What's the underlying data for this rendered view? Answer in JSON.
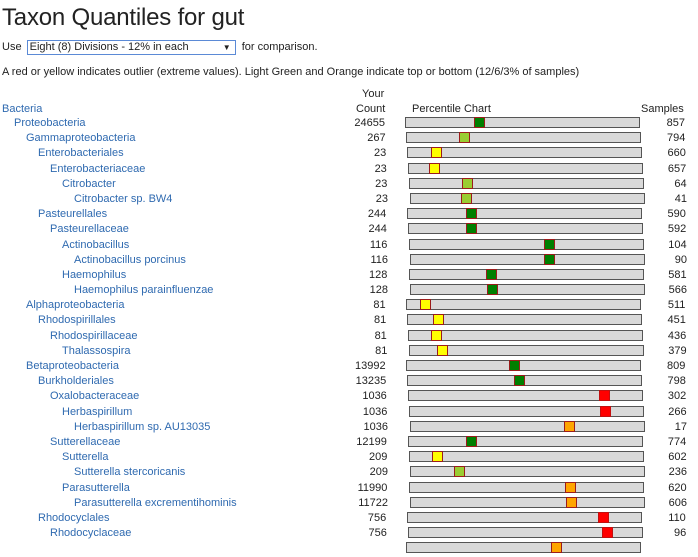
{
  "title": "Taxon Quantiles for gut",
  "comparison": {
    "prefix": "Use",
    "selected": "Eight (8) Divisions - 12% in each",
    "suffix": "for comparison."
  },
  "note": "A red or yellow indicates outlier (extreme values). Light Green and Orange indicate top or bottom (12/6/3% of samples)",
  "headers": {
    "your": "Your",
    "count": "Count",
    "chart": "Percentile Chart",
    "samples": "Samples"
  },
  "root": "Bacteria",
  "colors": {
    "green": "#007f00",
    "light_green": "#9acd32",
    "yellow": "#ffff00",
    "orange": "#ffa500",
    "red": "#ff0000",
    "bar": "#d9d9d9",
    "link": "#2f6ab0"
  },
  "rows": [
    {
      "name": "Proteobacteria",
      "level": 1,
      "count": "24655",
      "samples": "857",
      "percentile": 0.317,
      "color": "green"
    },
    {
      "name": "Gammaproteobacteria",
      "level": 2,
      "count": "267",
      "samples": "794",
      "percentile": 0.247,
      "color": "light_green"
    },
    {
      "name": "Enterobacteriales",
      "level": 3,
      "count": "23",
      "samples": "660",
      "percentile": 0.123,
      "color": "yellow"
    },
    {
      "name": "Enterobacteriaceae",
      "level": 4,
      "count": "23",
      "samples": "657",
      "percentile": 0.11,
      "color": "yellow"
    },
    {
      "name": "Citrobacter",
      "level": 5,
      "count": "23",
      "samples": "64",
      "percentile": 0.245,
      "color": "light_green"
    },
    {
      "name": "Citrobacter sp. BW4",
      "level": 6,
      "count": "23",
      "samples": "41",
      "percentile": 0.24,
      "color": "light_green"
    },
    {
      "name": "Pasteurellales",
      "level": 3,
      "count": "244",
      "samples": "590",
      "percentile": 0.273,
      "color": "green"
    },
    {
      "name": "Pasteurellaceae",
      "level": 4,
      "count": "244",
      "samples": "592",
      "percentile": 0.27,
      "color": "green"
    },
    {
      "name": "Actinobacillus",
      "level": 5,
      "count": "116",
      "samples": "104",
      "percentile": 0.6,
      "color": "green"
    },
    {
      "name": "Actinobacillus porcinus",
      "level": 6,
      "count": "116",
      "samples": "90",
      "percentile": 0.595,
      "color": "green"
    },
    {
      "name": "Haemophilus",
      "level": 5,
      "count": "128",
      "samples": "581",
      "percentile": 0.35,
      "color": "green"
    },
    {
      "name": "Haemophilus parainfluenzae",
      "level": 6,
      "count": "128",
      "samples": "566",
      "percentile": 0.35,
      "color": "green"
    },
    {
      "name": "Alphaproteobacteria",
      "level": 2,
      "count": "81",
      "samples": "511",
      "percentile": 0.08,
      "color": "yellow"
    },
    {
      "name": "Rhodospirillales",
      "level": 3,
      "count": "81",
      "samples": "451",
      "percentile": 0.13,
      "color": "yellow"
    },
    {
      "name": "Rhodospirillaceae",
      "level": 4,
      "count": "81",
      "samples": "436",
      "percentile": 0.12,
      "color": "yellow"
    },
    {
      "name": "Thalassospira",
      "level": 5,
      "count": "81",
      "samples": "379",
      "percentile": 0.14,
      "color": "yellow"
    },
    {
      "name": "Betaproteobacteria",
      "level": 2,
      "count": "13992",
      "samples": "809",
      "percentile": 0.46,
      "color": "green"
    },
    {
      "name": "Burkholderiales",
      "level": 3,
      "count": "13235",
      "samples": "798",
      "percentile": 0.48,
      "color": "green"
    },
    {
      "name": "Oxalobacteraceae",
      "level": 4,
      "count": "1036",
      "samples": "302",
      "percentile": 0.84,
      "color": "red"
    },
    {
      "name": "Herbaspirillum",
      "level": 5,
      "count": "1036",
      "samples": "266",
      "percentile": 0.84,
      "color": "red"
    },
    {
      "name": "Herbaspirillum sp. AU13035",
      "level": 6,
      "count": "1036",
      "samples": "17",
      "percentile": 0.68,
      "color": "orange"
    },
    {
      "name": "Sutterellaceae",
      "level": 4,
      "count": "12199",
      "samples": "774",
      "percentile": 0.27,
      "color": "green"
    },
    {
      "name": "Sutterella",
      "level": 5,
      "count": "209",
      "samples": "602",
      "percentile": 0.12,
      "color": "yellow"
    },
    {
      "name": "Sutterella stercoricanis",
      "level": 6,
      "count": "209",
      "samples": "236",
      "percentile": 0.21,
      "color": "light_green"
    },
    {
      "name": "Parasutterella",
      "level": 5,
      "count": "11990",
      "samples": "620",
      "percentile": 0.69,
      "color": "orange"
    },
    {
      "name": "Parasutterella excrementihominis",
      "level": 6,
      "count": "11722",
      "samples": "606",
      "percentile": 0.69,
      "color": "orange"
    },
    {
      "name": "Rhodocyclales",
      "level": 3,
      "count": "756",
      "samples": "110",
      "percentile": 0.84,
      "color": "red"
    },
    {
      "name": "Rhodocyclaceae",
      "level": 4,
      "count": "756",
      "samples": "96",
      "percentile": 0.85,
      "color": "red"
    },
    {
      "name": "",
      "level": 2,
      "count": "",
      "samples": "",
      "percentile": 0.64,
      "color": "orange"
    }
  ]
}
